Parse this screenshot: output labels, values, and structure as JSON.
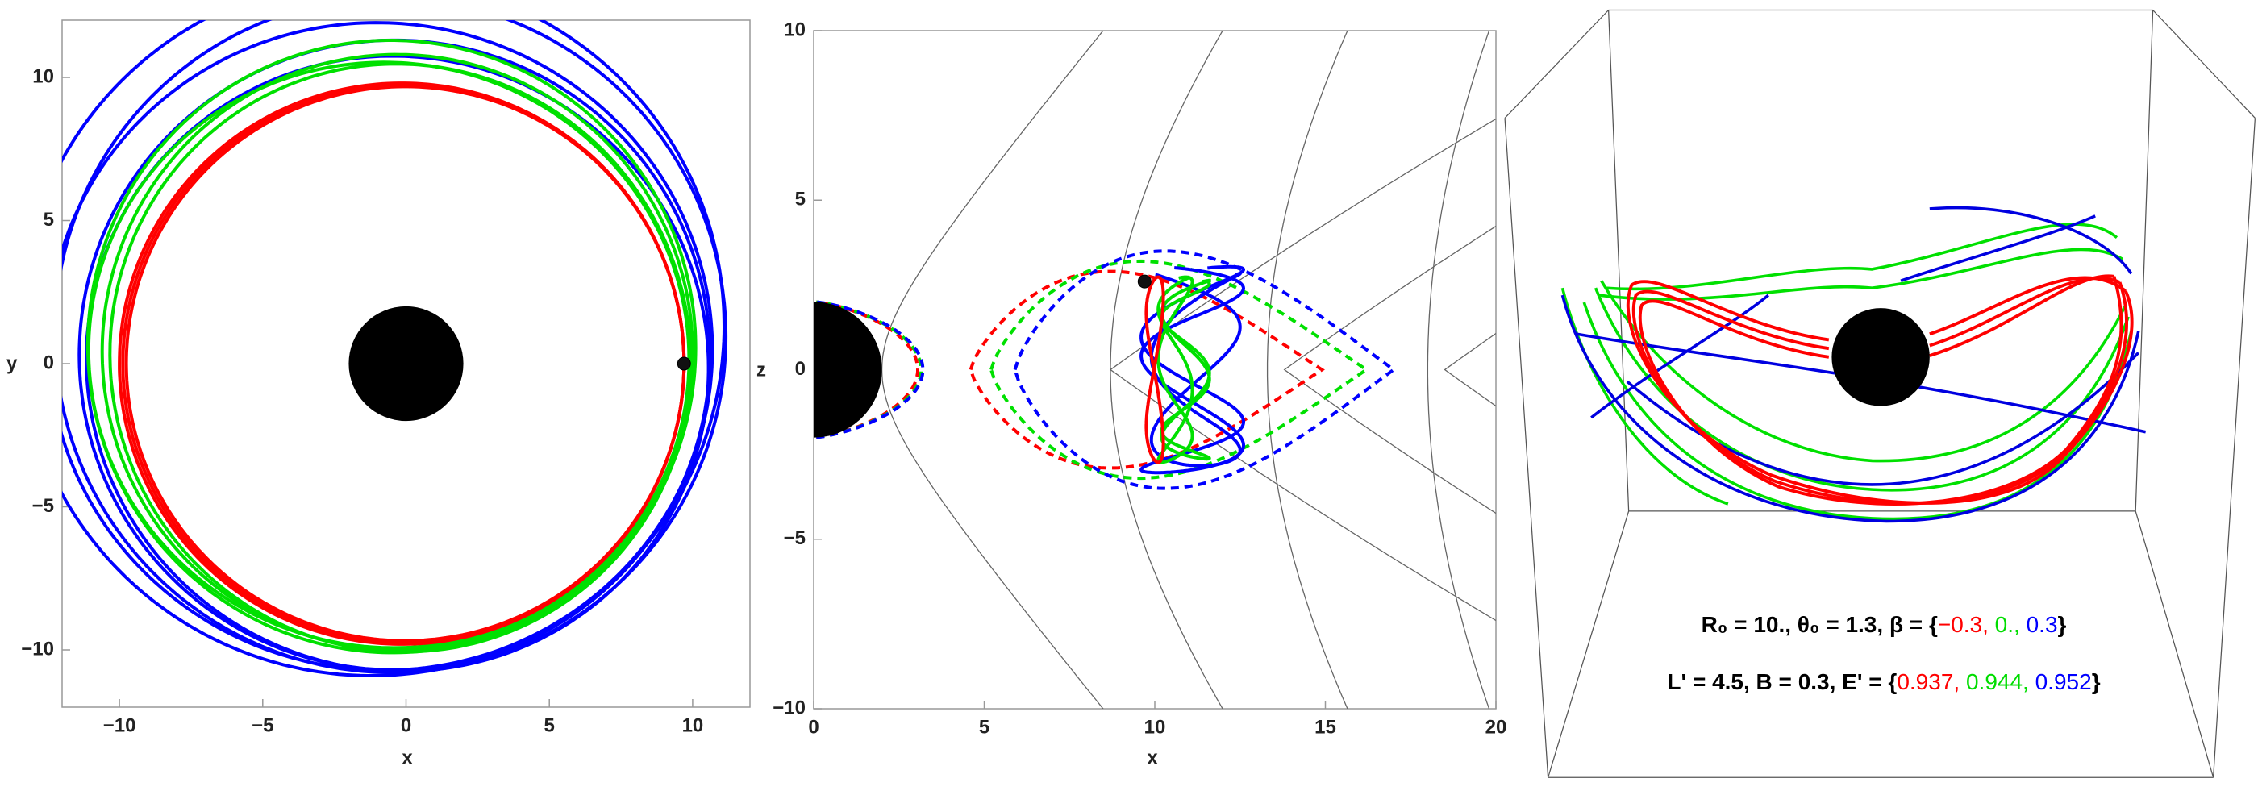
{
  "chart_data": [
    {
      "type": "orbit",
      "xlabel": "x",
      "ylabel": "y",
      "xlim": [
        -12,
        12
      ],
      "ylim": [
        -12,
        12
      ],
      "xticks": [
        {
          "value": -10,
          "label": "−10"
        },
        {
          "value": -5,
          "label": "−5"
        },
        0,
        5,
        10
      ],
      "yticks": [
        {
          "value": -10,
          "label": "−10"
        },
        {
          "value": -5,
          "label": "−5"
        },
        0,
        5,
        10
      ],
      "points": {
        "x": [
          9.7
        ],
        "y": [
          0
        ]
      }
    },
    {
      "type": "meridian",
      "xlabel": "x",
      "ylabel": "z",
      "xlim": [
        0,
        20
      ],
      "ylim": [
        -10,
        10
      ],
      "xticks": [
        0,
        5,
        10,
        15,
        20
      ],
      "yticks": [
        {
          "value": -10,
          "label": "−10"
        },
        {
          "value": -5,
          "label": "−5"
        },
        0,
        5,
        10
      ],
      "points": {
        "x": [
          9.7
        ],
        "y": [
          2.6
        ]
      }
    },
    {
      "type": "3d",
      "annotations": [
        [
          {
            "text": "R₀ = 10., θ₀ = 1.3, β = {",
            "color": "#000000"
          },
          {
            "text": "−0.3,",
            "color": "#ff0000"
          },
          {
            "text": " 0.,",
            "color": "#00dd00"
          },
          {
            "text": " 0.3",
            "color": "#0000ff"
          },
          {
            "text": "}",
            "color": "#000000"
          }
        ],
        [
          {
            "text": "L' = 4.5, B = 0.3, E' = {",
            "color": "#000000"
          },
          {
            "text": "0.937,",
            "color": "#ff0000"
          },
          {
            "text": " 0.944,",
            "color": "#00dd00"
          },
          {
            "text": " 0.952",
            "color": "#0000ff"
          },
          {
            "text": "}",
            "color": "#000000"
          }
        ]
      ]
    }
  ]
}
